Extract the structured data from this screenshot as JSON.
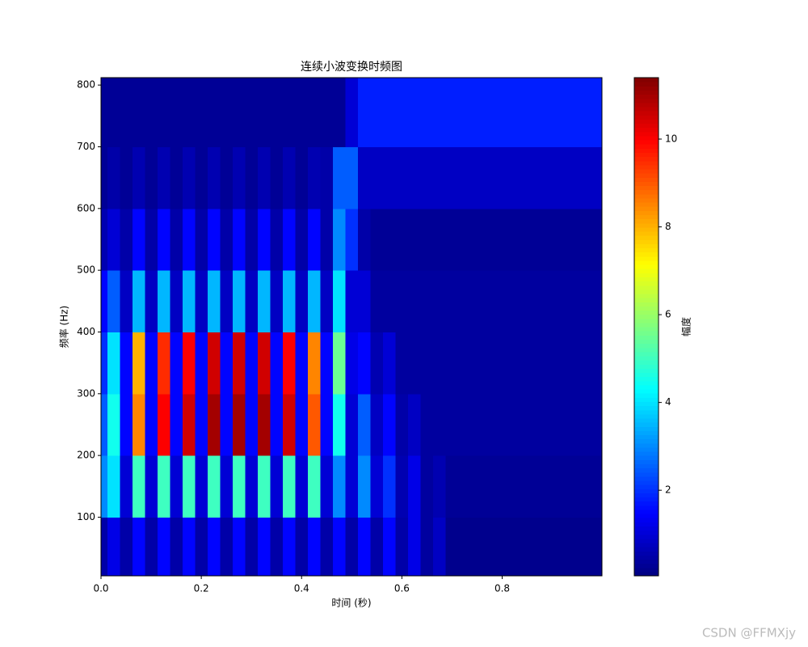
{
  "chart_data": {
    "type": "heatmap",
    "title": "连续小波变换时频图",
    "x_label": "时间 (秒)",
    "y_label": "频率 (Hz)",
    "colorbar_label": "幅度",
    "watermark": "CSDN @FFMXjy",
    "colormap": "jet",
    "xlim": [
      0,
      0.999
    ],
    "xticks": [
      {
        "value": 0,
        "label": "0.0"
      },
      0.2,
      0.4,
      0.6,
      0.8
    ],
    "ylim": [
      5,
      812
    ],
    "yticks": [
      100,
      200,
      300,
      400,
      500,
      600,
      700,
      800
    ],
    "clim": [
      0.05,
      11.4
    ],
    "cticks": [
      2,
      4,
      6,
      8,
      10
    ],
    "xbins": [
      0,
      0.0125,
      0.0375,
      0.0625,
      0.0875,
      0.1125,
      0.1375,
      0.1625,
      0.1875,
      0.2125,
      0.2375,
      0.2625,
      0.2875,
      0.3125,
      0.3375,
      0.3625,
      0.3875,
      0.4125,
      0.4375,
      0.4625,
      0.4875,
      0.5125,
      0.5375,
      0.5625,
      0.5875,
      0.6125,
      0.6375,
      0.6625,
      0.6875,
      0.7125,
      0.7375,
      0.7625,
      0.7875,
      0.8125,
      0.8375,
      0.8625,
      0.8875,
      0.9125,
      0.9375,
      0.9625,
      0.999
    ],
    "ybins": [
      5,
      100,
      200,
      300,
      400,
      500,
      600,
      700,
      812
    ],
    "z": [
      [
        0.5,
        1.2,
        0.5,
        1.5,
        0.5,
        1.5,
        0.5,
        1.5,
        0.5,
        1.5,
        0.5,
        1.5,
        0.5,
        1.5,
        0.5,
        1.5,
        0.5,
        1.5,
        0.5,
        1.5,
        0.5,
        1.5,
        0.5,
        1.5,
        0.5,
        1.2,
        0.4,
        0.8,
        0.2,
        0.2,
        0.2,
        0.2,
        0.2,
        0.2,
        0.2,
        0.2,
        0.2,
        0.2,
        0.2,
        0.2
      ],
      [
        3,
        4,
        1,
        5,
        1,
        5,
        1,
        5,
        1,
        5,
        1,
        5,
        1,
        5,
        1,
        5,
        1,
        5,
        1,
        3,
        1,
        3,
        1,
        2,
        0.6,
        1.2,
        0.4,
        0.6,
        0.3,
        0.3,
        0.3,
        0.3,
        0.3,
        0.3,
        0.3,
        0.3,
        0.3,
        0.3,
        0.3,
        0.3
      ],
      [
        2.5,
        4.5,
        1.5,
        8.5,
        1.5,
        10,
        1.5,
        10.5,
        1.5,
        11,
        1.5,
        11,
        1.5,
        11,
        1.5,
        10.5,
        1.5,
        9,
        1.5,
        4.5,
        1,
        2.5,
        0.8,
        1.5,
        0.5,
        0.8,
        0.4,
        0.4,
        0.4,
        0.4,
        0.4,
        0.4,
        0.4,
        0.4,
        0.4,
        0.4,
        0.4,
        0.4,
        0.4,
        0.4
      ],
      [
        2,
        4,
        1.5,
        8,
        1.5,
        9.5,
        1.5,
        10,
        1.5,
        10.5,
        1.5,
        10.5,
        1.5,
        10.5,
        1.5,
        10,
        1.5,
        8.5,
        1.5,
        5.5,
        1.2,
        1.5,
        0.6,
        1,
        0.4,
        0.4,
        0.4,
        0.4,
        0.4,
        0.4,
        0.4,
        0.4,
        0.4,
        0.4,
        0.4,
        0.4,
        0.4,
        0.4,
        0.4,
        0.4
      ],
      [
        1.5,
        2.5,
        0.8,
        3.5,
        0.8,
        3.5,
        0.8,
        3.5,
        0.8,
        3.5,
        0.8,
        3.5,
        0.8,
        3.5,
        0.8,
        3.5,
        0.8,
        3.5,
        0.8,
        4,
        1,
        1,
        0.4,
        0.4,
        0.4,
        0.4,
        0.4,
        0.4,
        0.4,
        0.4,
        0.4,
        0.4,
        0.4,
        0.4,
        0.4,
        0.4,
        0.4,
        0.4,
        0.4,
        0.4
      ],
      [
        0.6,
        1,
        0.5,
        1.5,
        0.5,
        1.5,
        0.5,
        1.5,
        0.5,
        1.5,
        0.5,
        1.5,
        0.5,
        1.5,
        0.5,
        1.5,
        0.5,
        1.5,
        0.5,
        3,
        2,
        0.5,
        0.3,
        0.3,
        0.3,
        0.3,
        0.3,
        0.3,
        0.3,
        0.3,
        0.3,
        0.3,
        0.3,
        0.3,
        0.3,
        0.3,
        0.3,
        0.3,
        0.3,
        0.3
      ],
      [
        0.3,
        0.5,
        0.3,
        0.6,
        0.3,
        0.6,
        0.3,
        0.6,
        0.3,
        0.6,
        0.3,
        0.6,
        0.3,
        0.6,
        0.3,
        0.6,
        0.3,
        0.6,
        0.5,
        2.5,
        2.5,
        0.8,
        0.8,
        0.8,
        0.8,
        0.8,
        0.8,
        0.8,
        0.8,
        0.8,
        0.8,
        0.8,
        0.8,
        0.8,
        0.8,
        0.8,
        0.8,
        0.8,
        0.8,
        0.8
      ],
      [
        0.3,
        0.3,
        0.3,
        0.3,
        0.3,
        0.3,
        0.3,
        0.3,
        0.3,
        0.3,
        0.3,
        0.3,
        0.3,
        0.3,
        0.3,
        0.3,
        0.3,
        0.3,
        0.3,
        0.3,
        1,
        1.8,
        1.8,
        1.8,
        1.8,
        1.8,
        1.8,
        1.8,
        1.8,
        1.8,
        1.8,
        1.8,
        1.8,
        1.8,
        1.8,
        1.8,
        1.8,
        1.8,
        1.8,
        1.8
      ]
    ]
  }
}
